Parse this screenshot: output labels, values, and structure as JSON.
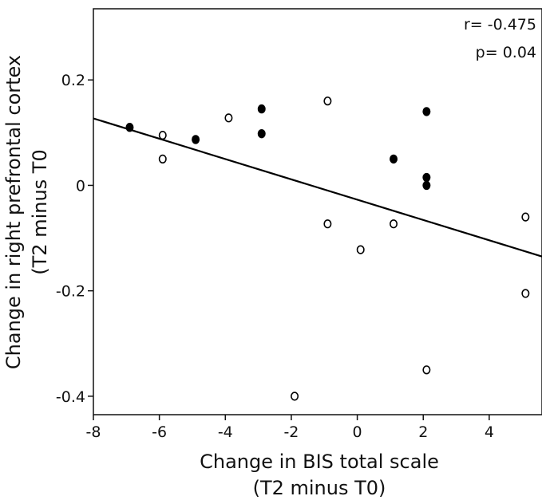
{
  "chart_data": {
    "type": "scatter",
    "title": "",
    "xlabel": [
      "Change in BIS total scale",
      "(T2 minus T0)"
    ],
    "ylabel": [
      "Change in right  prefrontal cortex",
      "(T2 minus T0"
    ],
    "xlim": [
      -8,
      5.6
    ],
    "ylim": [
      -0.435,
      0.335
    ],
    "xticks": [
      -8,
      -6,
      -4,
      -2,
      0,
      2,
      4
    ],
    "xtick_labels": [
      "-8",
      "-6",
      "-4",
      "-2",
      "0",
      "2",
      "4"
    ],
    "yticks": [
      0.2,
      0,
      -0.2,
      -0.4
    ],
    "ytick_labels": [
      "0.2",
      "0",
      "-0.2",
      "-0.4"
    ],
    "grid": false,
    "annotations": [
      "r= -0.475",
      "p= 0.04"
    ],
    "series": [
      {
        "marker": "filled-circle",
        "color": "#000000",
        "x": [
          -6.9,
          -4.9,
          -2.9,
          -2.9,
          1.1,
          2.1,
          2.1,
          2.1
        ],
        "y": [
          0.11,
          0.087,
          0.145,
          0.098,
          0.05,
          0.14,
          0.015,
          0.0
        ]
      },
      {
        "marker": "open-circle",
        "color": "#000000",
        "x": [
          -5.9,
          -5.9,
          -3.9,
          -0.9,
          -0.9,
          0.1,
          1.1,
          2.1,
          5.1,
          5.1,
          -1.9
        ],
        "y": [
          0.095,
          0.05,
          0.128,
          0.16,
          -0.073,
          -0.122,
          -0.073,
          -0.35,
          -0.06,
          -0.205,
          -0.4
        ]
      }
    ],
    "fit_line": {
      "x": [
        -8,
        5.6
      ],
      "y": [
        0.127,
        -0.135
      ],
      "color": "#000000"
    }
  }
}
